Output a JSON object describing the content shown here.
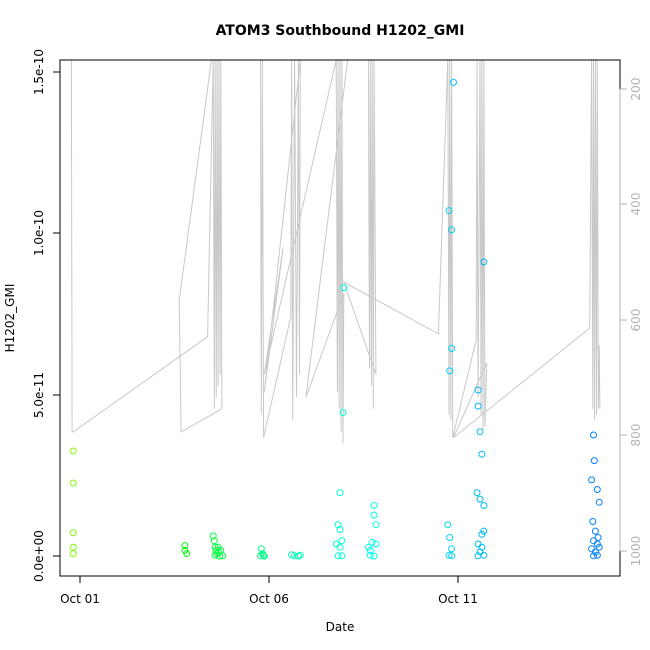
{
  "chart_data": {
    "type": "scatter",
    "title": "ATOM3 Southbound H1202_GMI",
    "xlabel": "Date",
    "ylabel": "H1202_GMI",
    "x_ticks": [
      "Oct 01",
      "Oct 06",
      "Oct 11"
    ],
    "y_ticks": [
      "0.0e+00",
      "5.0e-11",
      "1.0e-10",
      "1.5e-10"
    ],
    "right_ticks": [
      "200",
      "400",
      "600",
      "800",
      "1000"
    ],
    "xlim_days": [
      0.7,
      15.5
    ],
    "ylim": [
      -6e-12,
      1.55e-10
    ],
    "ylim_right": [
      1050,
      155
    ],
    "grid": false,
    "legend": "none",
    "colors": {
      "altitude_line": "#c8c8c8",
      "right_axis": "#b3b3b3",
      "point_gradient": [
        "#80ff00",
        "#00ff00",
        "#00ffaa",
        "#00ffff",
        "#00b0f0",
        "#0080ff"
      ]
    },
    "series": [
      {
        "points": [
          {
            "x": 1.05,
            "y": 3.3e-11
          },
          {
            "x": 1.05,
            "y": 2.3e-11
          },
          {
            "x": 1.05,
            "y": 7.5e-12
          },
          {
            "x": 1.05,
            "y": 3e-12
          },
          {
            "x": 1.05,
            "y": 1e-12
          },
          {
            "x": 4.0,
            "y": 3.5e-12
          },
          {
            "x": 4.0,
            "y": 2e-12
          },
          {
            "x": 4.05,
            "y": 1e-12
          },
          {
            "x": 4.75,
            "y": 6.5e-12
          },
          {
            "x": 4.78,
            "y": 5e-12
          },
          {
            "x": 4.8,
            "y": 3e-12
          },
          {
            "x": 4.82,
            "y": 2e-12
          },
          {
            "x": 4.85,
            "y": 1e-12
          },
          {
            "x": 4.88,
            "y": 3e-12
          },
          {
            "x": 4.9,
            "y": 1.5e-12
          },
          {
            "x": 4.95,
            "y": 2e-12
          },
          {
            "x": 4.8,
            "y": 5e-13
          },
          {
            "x": 5.0,
            "y": 3e-13
          },
          {
            "x": 4.92,
            "y": 2e-13
          },
          {
            "x": 6.02,
            "y": 2.5e-12
          },
          {
            "x": 6.05,
            "y": 1e-12
          },
          {
            "x": 6.0,
            "y": 3e-13
          },
          {
            "x": 6.08,
            "y": 5e-13
          },
          {
            "x": 6.1,
            "y": 2e-13
          },
          {
            "x": 6.82,
            "y": 6e-13
          },
          {
            "x": 6.9,
            "y": 3e-13
          },
          {
            "x": 7.0,
            "y": 2e-13
          },
          {
            "x": 7.05,
            "y": 5e-13
          },
          {
            "x": 8.05,
            "y": 1e-11
          },
          {
            "x": 8.1,
            "y": 8.5e-12
          },
          {
            "x": 8.15,
            "y": 5e-12
          },
          {
            "x": 8.0,
            "y": 4e-12
          },
          {
            "x": 8.1,
            "y": 3e-12
          },
          {
            "x": 8.05,
            "y": 3e-13
          },
          {
            "x": 8.15,
            "y": 3e-13
          },
          {
            "x": 8.2,
            "y": 8.4e-11
          },
          {
            "x": 8.18,
            "y": 4.5e-11
          },
          {
            "x": 8.1,
            "y": 2e-11
          },
          {
            "x": 8.85,
            "y": 3e-12
          },
          {
            "x": 8.9,
            "y": 2e-12
          },
          {
            "x": 8.95,
            "y": 4.5e-12
          },
          {
            "x": 9.0,
            "y": 1.3e-11
          },
          {
            "x": 9.05,
            "y": 1e-11
          },
          {
            "x": 9.0,
            "y": 1.6e-11
          },
          {
            "x": 8.9,
            "y": 5e-13
          },
          {
            "x": 9.0,
            "y": 2e-13
          },
          {
            "x": 9.05,
            "y": 4e-12
          },
          {
            "x": 10.95,
            "y": 1e-11
          },
          {
            "x": 11.0,
            "y": 6e-12
          },
          {
            "x": 11.05,
            "y": 2.5e-12
          },
          {
            "x": 10.98,
            "y": 5e-13
          },
          {
            "x": 11.05,
            "y": 3e-13
          },
          {
            "x": 11.0,
            "y": 5.8e-11
          },
          {
            "x": 11.05,
            "y": 6.5e-11
          },
          {
            "x": 10.98,
            "y": 1.08e-10
          },
          {
            "x": 11.05,
            "y": 1.02e-10
          },
          {
            "x": 11.1,
            "y": 1.48e-10
          },
          {
            "x": 11.72,
            "y": 2e-11
          },
          {
            "x": 11.8,
            "y": 1.8e-11
          },
          {
            "x": 11.9,
            "y": 1.6e-11
          },
          {
            "x": 11.85,
            "y": 3.2e-11
          },
          {
            "x": 11.8,
            "y": 3.9e-11
          },
          {
            "x": 11.75,
            "y": 4.7e-11
          },
          {
            "x": 11.75,
            "y": 5.2e-11
          },
          {
            "x": 11.9,
            "y": 9.2e-11
          },
          {
            "x": 11.75,
            "y": 4e-12
          },
          {
            "x": 11.85,
            "y": 3e-12
          },
          {
            "x": 11.8,
            "y": 1.5e-12
          },
          {
            "x": 11.9,
            "y": 5e-13
          },
          {
            "x": 11.75,
            "y": 3e-13
          },
          {
            "x": 11.85,
            "y": 7e-12
          },
          {
            "x": 11.9,
            "y": 8e-12
          },
          {
            "x": 14.8,
            "y": 3.8e-11
          },
          {
            "x": 14.82,
            "y": 3e-11
          },
          {
            "x": 14.75,
            "y": 2.4e-11
          },
          {
            "x": 14.9,
            "y": 2.1e-11
          },
          {
            "x": 14.95,
            "y": 1.7e-11
          },
          {
            "x": 14.78,
            "y": 1.1e-11
          },
          {
            "x": 14.85,
            "y": 8e-12
          },
          {
            "x": 14.8,
            "y": 5e-12
          },
          {
            "x": 14.9,
            "y": 4e-12
          },
          {
            "x": 14.95,
            "y": 3e-12
          },
          {
            "x": 14.75,
            "y": 2.5e-12
          },
          {
            "x": 14.85,
            "y": 1.5e-12
          },
          {
            "x": 14.9,
            "y": 5e-13
          },
          {
            "x": 14.8,
            "y": 3e-13
          },
          {
            "x": 14.92,
            "y": 6e-12
          }
        ]
      },
      {
        "right_axis": true,
        "line": [
          {
            "x": 1.0,
            "y": 155
          },
          {
            "x": 1.02,
            "y": 800
          },
          {
            "x": 1.05,
            "y": 800
          },
          {
            "x": 4.6,
            "y": 635
          },
          {
            "x": 4.75,
            "y": 155
          },
          {
            "x": 4.78,
            "y": 760
          },
          {
            "x": 4.8,
            "y": 155
          },
          {
            "x": 4.83,
            "y": 740
          },
          {
            "x": 4.85,
            "y": 155
          },
          {
            "x": 4.88,
            "y": 720
          },
          {
            "x": 4.9,
            "y": 155
          },
          {
            "x": 4.93,
            "y": 700
          },
          {
            "x": 4.95,
            "y": 155
          },
          {
            "x": 4.98,
            "y": 760
          },
          {
            "x": 3.9,
            "y": 800
          },
          {
            "x": 3.85,
            "y": 572
          },
          {
            "x": 4.7,
            "y": 155
          },
          {
            "x": 6.0,
            "y": 155
          },
          {
            "x": 6.02,
            "y": 770
          },
          {
            "x": 6.05,
            "y": 155
          },
          {
            "x": 6.08,
            "y": 810
          },
          {
            "x": 6.8,
            "y": 600
          },
          {
            "x": 6.82,
            "y": 155
          },
          {
            "x": 6.85,
            "y": 780
          },
          {
            "x": 6.9,
            "y": 155
          },
          {
            "x": 6.95,
            "y": 740
          },
          {
            "x": 7.0,
            "y": 155
          },
          {
            "x": 7.03,
            "y": 700
          },
          {
            "x": 7.05,
            "y": 155
          },
          {
            "x": 6.1,
            "y": 730
          },
          {
            "x": 6.6,
            "y": 480
          },
          {
            "x": 6.1,
            "y": 700
          },
          {
            "x": 8.0,
            "y": 155
          },
          {
            "x": 8.03,
            "y": 730
          },
          {
            "x": 8.05,
            "y": 155
          },
          {
            "x": 8.08,
            "y": 760
          },
          {
            "x": 8.1,
            "y": 155
          },
          {
            "x": 8.13,
            "y": 800
          },
          {
            "x": 8.15,
            "y": 155
          },
          {
            "x": 8.18,
            "y": 820
          },
          {
            "x": 8.2,
            "y": 560
          },
          {
            "x": 7.2,
            "y": 740
          },
          {
            "x": 8.3,
            "y": 155
          },
          {
            "x": 8.85,
            "y": 155
          },
          {
            "x": 8.88,
            "y": 690
          },
          {
            "x": 8.9,
            "y": 155
          },
          {
            "x": 8.93,
            "y": 720
          },
          {
            "x": 8.95,
            "y": 155
          },
          {
            "x": 8.98,
            "y": 760
          },
          {
            "x": 9.0,
            "y": 155
          },
          {
            "x": 9.05,
            "y": 700
          },
          {
            "x": 8.2,
            "y": 540
          },
          {
            "x": 10.7,
            "y": 630
          },
          {
            "x": 10.95,
            "y": 155
          },
          {
            "x": 10.98,
            "y": 770
          },
          {
            "x": 11.0,
            "y": 155
          },
          {
            "x": 11.03,
            "y": 780
          },
          {
            "x": 11.05,
            "y": 155
          },
          {
            "x": 11.08,
            "y": 810
          },
          {
            "x": 11.7,
            "y": 640
          },
          {
            "x": 11.72,
            "y": 155
          },
          {
            "x": 11.75,
            "y": 740
          },
          {
            "x": 11.8,
            "y": 155
          },
          {
            "x": 11.83,
            "y": 770
          },
          {
            "x": 11.85,
            "y": 155
          },
          {
            "x": 11.88,
            "y": 800
          },
          {
            "x": 11.9,
            "y": 155
          },
          {
            "x": 11.93,
            "y": 790
          },
          {
            "x": 11.98,
            "y": 680
          },
          {
            "x": 11.1,
            "y": 810
          },
          {
            "x": 14.7,
            "y": 620
          },
          {
            "x": 14.75,
            "y": 155
          },
          {
            "x": 14.78,
            "y": 760
          },
          {
            "x": 14.8,
            "y": 155
          },
          {
            "x": 14.83,
            "y": 780
          },
          {
            "x": 14.85,
            "y": 155
          },
          {
            "x": 14.88,
            "y": 770
          },
          {
            "x": 14.9,
            "y": 155
          },
          {
            "x": 14.93,
            "y": 760
          },
          {
            "x": 14.95,
            "y": 650
          },
          {
            "x": 14.97,
            "y": 760
          }
        ]
      }
    ]
  }
}
